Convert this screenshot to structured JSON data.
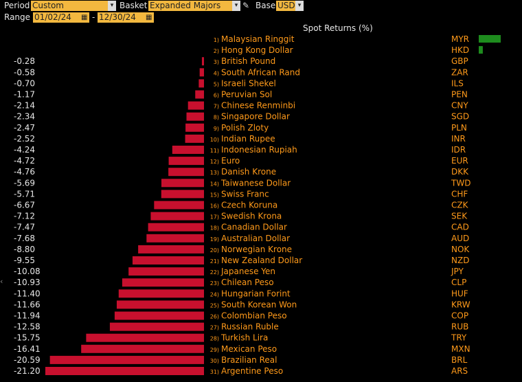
{
  "controls": {
    "period_label": "Period",
    "period_value": "Custom",
    "basket_label": "Basket",
    "basket_value": "Expanded Majors",
    "base_label": "Base",
    "base_value": "USD",
    "range_label": "Range",
    "range_start": "01/02/24",
    "range_end": "12/30/24",
    "range_sep": "-"
  },
  "chart_data": {
    "type": "bar",
    "orientation": "horizontal",
    "title": "Spot Returns (%)",
    "currencies": [
      {
        "rank": 1,
        "name": "Malaysian Ringgit",
        "code": "MYR",
        "value": 2.7,
        "label": ""
      },
      {
        "rank": 2,
        "name": "Hong Kong Dollar",
        "code": "HKD",
        "value": 0.5,
        "label": ""
      },
      {
        "rank": 3,
        "name": "British Pound",
        "code": "GBP",
        "value": -0.28,
        "label": "-0.28"
      },
      {
        "rank": 4,
        "name": "South African Rand",
        "code": "ZAR",
        "value": -0.58,
        "label": "-0.58"
      },
      {
        "rank": 5,
        "name": "Israeli Shekel",
        "code": "ILS",
        "value": -0.7,
        "label": "-0.70"
      },
      {
        "rank": 6,
        "name": "Peruvian Sol",
        "code": "PEN",
        "value": -1.17,
        "label": "-1.17"
      },
      {
        "rank": 7,
        "name": "Chinese Renminbi",
        "code": "CNY",
        "value": -2.14,
        "label": "-2.14"
      },
      {
        "rank": 8,
        "name": "Singapore Dollar",
        "code": "SGD",
        "value": -2.34,
        "label": "-2.34"
      },
      {
        "rank": 9,
        "name": "Polish Zloty",
        "code": "PLN",
        "value": -2.47,
        "label": "-2.47"
      },
      {
        "rank": 10,
        "name": "Indian Rupee",
        "code": "INR",
        "value": -2.52,
        "label": "-2.52"
      },
      {
        "rank": 11,
        "name": "Indonesian Rupiah",
        "code": "IDR",
        "value": -4.24,
        "label": "-4.24"
      },
      {
        "rank": 12,
        "name": "Euro",
        "code": "EUR",
        "value": -4.72,
        "label": "-4.72"
      },
      {
        "rank": 13,
        "name": "Danish Krone",
        "code": "DKK",
        "value": -4.76,
        "label": "-4.76"
      },
      {
        "rank": 14,
        "name": "Taiwanese Dollar",
        "code": "TWD",
        "value": -5.69,
        "label": "-5.69"
      },
      {
        "rank": 15,
        "name": "Swiss Franc",
        "code": "CHF",
        "value": -5.71,
        "label": "-5.71"
      },
      {
        "rank": 16,
        "name": "Czech Koruna",
        "code": "CZK",
        "value": -6.67,
        "label": "-6.67"
      },
      {
        "rank": 17,
        "name": "Swedish Krona",
        "code": "SEK",
        "value": -7.12,
        "label": "-7.12"
      },
      {
        "rank": 18,
        "name": "Canadian Dollar",
        "code": "CAD",
        "value": -7.47,
        "label": "-7.47"
      },
      {
        "rank": 19,
        "name": "Australian Dollar",
        "code": "AUD",
        "value": -7.68,
        "label": "-7.68"
      },
      {
        "rank": 20,
        "name": "Norwegian Krone",
        "code": "NOK",
        "value": -8.8,
        "label": "-8.80"
      },
      {
        "rank": 21,
        "name": "New Zealand Dollar",
        "code": "NZD",
        "value": -9.55,
        "label": "-9.55"
      },
      {
        "rank": 22,
        "name": "Japanese Yen",
        "code": "JPY",
        "value": -10.08,
        "label": "-10.08"
      },
      {
        "rank": 23,
        "name": "Chilean Peso",
        "code": "CLP",
        "value": -10.93,
        "label": "-10.93"
      },
      {
        "rank": 24,
        "name": "Hungarian Forint",
        "code": "HUF",
        "value": -11.4,
        "label": "-11.40"
      },
      {
        "rank": 25,
        "name": "South Korean Won",
        "code": "KRW",
        "value": -11.66,
        "label": "-11.66"
      },
      {
        "rank": 26,
        "name": "Colombian Peso",
        "code": "COP",
        "value": -11.94,
        "label": "-11.94"
      },
      {
        "rank": 27,
        "name": "Russian Ruble",
        "code": "RUB",
        "value": -12.58,
        "label": "-12.58"
      },
      {
        "rank": 28,
        "name": "Turkish Lira",
        "code": "TRY",
        "value": -15.75,
        "label": "-15.75"
      },
      {
        "rank": 29,
        "name": "Mexican Peso",
        "code": "MXN",
        "value": -16.41,
        "label": "-16.41"
      },
      {
        "rank": 30,
        "name": "Brazilian Real",
        "code": "BRL",
        "value": -20.59,
        "label": "-20.59"
      },
      {
        "rank": 31,
        "name": "Argentine Peso",
        "code": "ARS",
        "value": -21.2,
        "label": "-21.20"
      }
    ],
    "colors": {
      "positive": "#1e8c1e",
      "negative": "#c8102e",
      "text": "#ff9a1a",
      "value_text": "#e8e8e8"
    }
  }
}
